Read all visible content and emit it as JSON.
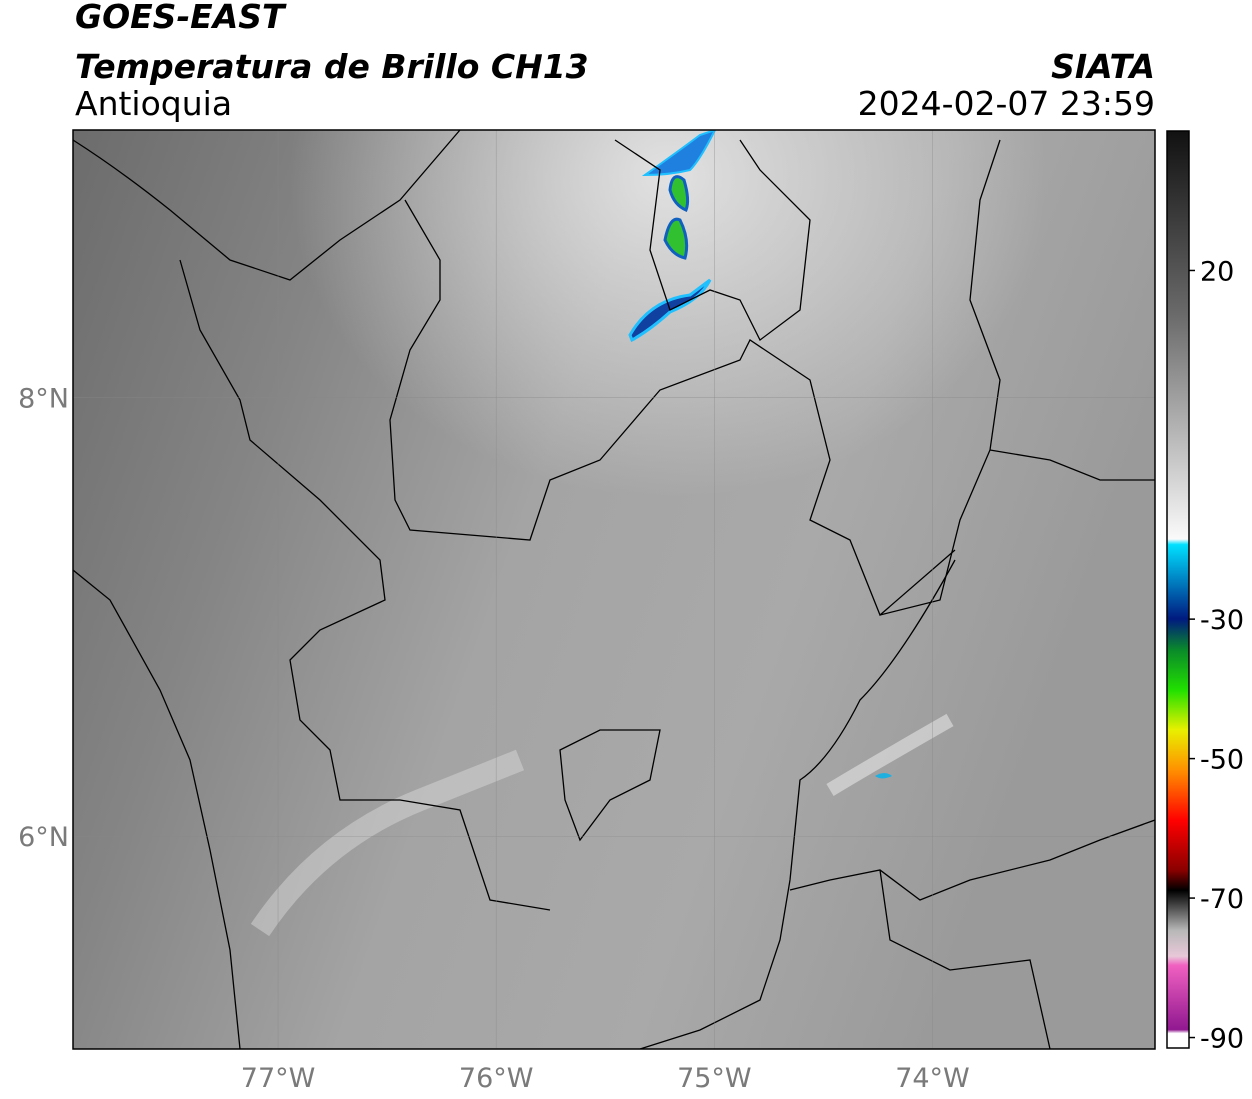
{
  "header": {
    "title_line1": "GOES-EAST",
    "title_line2": "Temperatura de Brillo CH13",
    "region": "Antioquia",
    "source": "SIATA",
    "datetime": "2024-02-07 23:59"
  },
  "map": {
    "lon_range": [
      -77.94,
      -72.98
    ],
    "lat_range": [
      5.03,
      9.22
    ],
    "lon_ticks": [
      {
        "value": -77,
        "label": "77°W"
      },
      {
        "value": -76,
        "label": "76°W"
      },
      {
        "value": -75,
        "label": "75°W"
      },
      {
        "value": -74,
        "label": "74°W"
      }
    ],
    "lat_ticks": [
      {
        "value": 8,
        "label": "8°N"
      },
      {
        "value": 6,
        "label": "6°N"
      }
    ]
  },
  "colorbar": {
    "range": [
      -91.5,
      40
    ],
    "ticks": [
      20,
      -30,
      -50,
      -70,
      -90
    ]
  }
}
